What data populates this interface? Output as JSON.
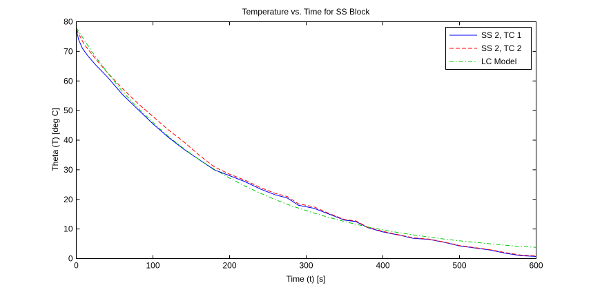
{
  "chart_data": {
    "type": "line",
    "title": "Temperature vs. Time for SS Block",
    "xlabel": "Time (t) [s]",
    "ylabel": "Theta (T) [deg C]",
    "xlim": [
      0,
      600
    ],
    "ylim": [
      0,
      80
    ],
    "xticks": [
      0,
      100,
      200,
      300,
      400,
      500,
      600
    ],
    "yticks": [
      0,
      10,
      20,
      30,
      40,
      50,
      60,
      70,
      80
    ],
    "grid": false,
    "legend_position": "top-right",
    "series": [
      {
        "name": "SS 2, TC 1",
        "color": "#0000ff",
        "dash": "solid",
        "x": [
          0,
          3,
          8,
          15,
          25,
          40,
          60,
          80,
          100,
          120,
          140,
          160,
          180,
          200,
          220,
          240,
          260,
          275,
          290,
          310,
          330,
          350,
          365,
          380,
          400,
          420,
          440,
          460,
          480,
          500,
          520,
          540,
          560,
          580,
          600
        ],
        "y": [
          77.5,
          74.0,
          71.0,
          68.5,
          65.5,
          61.5,
          55.5,
          50.5,
          45.5,
          41.0,
          37.0,
          33.5,
          30.0,
          28.0,
          26.0,
          23.5,
          21.5,
          20.5,
          18.0,
          17.0,
          15.0,
          13.0,
          12.5,
          10.5,
          9.0,
          8.0,
          6.8,
          6.5,
          5.5,
          4.3,
          3.6,
          2.9,
          1.8,
          1.0,
          0.7
        ]
      },
      {
        "name": "SS 2, TC 2",
        "color": "#ff0000",
        "dash": "dashed",
        "x": [
          0,
          10,
          25,
          40,
          60,
          80,
          100,
          120,
          140,
          160,
          180,
          200,
          220,
          240,
          260,
          275,
          290,
          310,
          330,
          350,
          365,
          380,
          400,
          420,
          440,
          460,
          480,
          500,
          520,
          540,
          560,
          580,
          600
        ],
        "y": [
          77.5,
          72.5,
          67.5,
          63.0,
          57.5,
          52.5,
          48.0,
          43.5,
          39.5,
          35.0,
          31.0,
          28.5,
          26.5,
          24.0,
          22.0,
          21.0,
          18.5,
          17.5,
          15.2,
          13.2,
          12.7,
          10.6,
          9.2,
          8.1,
          7.0,
          6.6,
          5.6,
          4.4,
          3.7,
          3.0,
          2.0,
          1.2,
          0.9
        ]
      },
      {
        "name": "LC Model",
        "color": "#00cc00",
        "dash": "dashdot",
        "x": [
          0,
          20,
          40,
          60,
          80,
          100,
          120,
          140,
          160,
          180,
          200,
          220,
          240,
          260,
          280,
          300,
          320,
          340,
          360,
          380,
          400,
          420,
          440,
          460,
          480,
          500,
          520,
          540,
          560,
          580,
          600
        ],
        "y": [
          78.0,
          70.0,
          63.0,
          56.5,
          51.0,
          46.0,
          41.3,
          37.2,
          33.5,
          30.2,
          27.2,
          24.5,
          22.1,
          19.9,
          17.9,
          16.2,
          14.6,
          13.2,
          11.9,
          10.7,
          9.7,
          8.8,
          8.0,
          7.3,
          6.6,
          6.0,
          5.5,
          5.0,
          4.5,
          4.1,
          3.8
        ]
      }
    ]
  }
}
